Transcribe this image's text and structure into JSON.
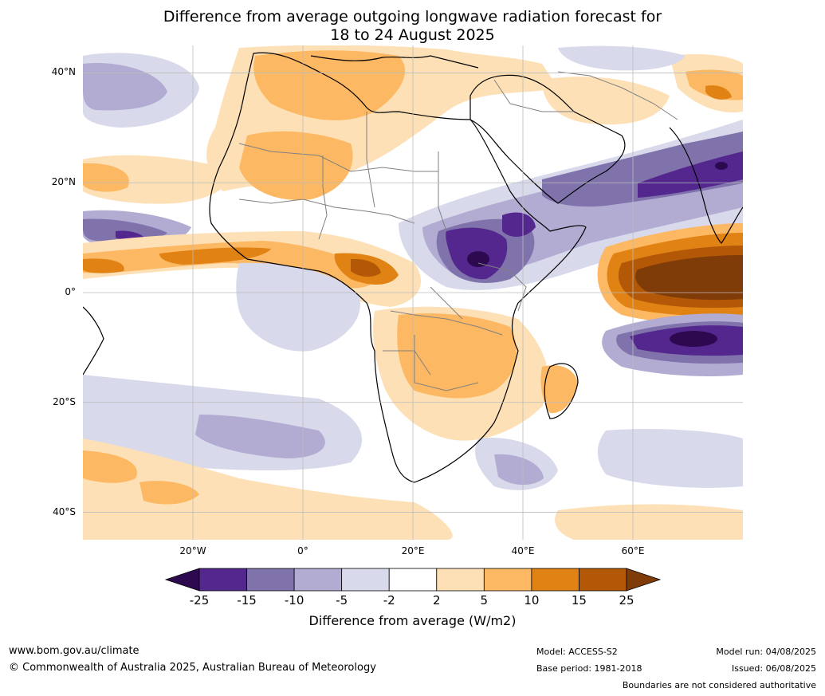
{
  "title": {
    "line1": "Difference from average outgoing longwave radiation forecast for",
    "line2": "18 to 24 August 2025"
  },
  "map": {
    "lat_labels": [
      "40°N",
      "20°N",
      "0°",
      "20°S",
      "40°S"
    ],
    "lon_labels": [
      "20°W",
      "0°",
      "20°E",
      "40°E",
      "60°E"
    ],
    "latitudes": [
      40,
      20,
      0,
      -20,
      -40
    ],
    "longitudes": [
      -20,
      0,
      20,
      40,
      60
    ],
    "extent": {
      "lon_min": -40,
      "lon_max": 80,
      "lat_min": -45,
      "lat_max": 45
    },
    "ocean_color": "#ffffff",
    "coastline_color": "#000000",
    "border_color": "#808080"
  },
  "colorbar": {
    "ticks": [
      "-25",
      "-15",
      "-10",
      "-5",
      "-2",
      "2",
      "5",
      "10",
      "15",
      "25"
    ],
    "colors": [
      "#2d0a4f",
      "#54278f",
      "#8073ac",
      "#b2abd2",
      "#d8daeb",
      "#ffffff",
      "#fee0b6",
      "#fdb863",
      "#e08214",
      "#b35806",
      "#7f3b08"
    ],
    "label": "Difference from average (W/m2)"
  },
  "footer": {
    "website": "www.bom.gov.au/climate",
    "copyright": "© Commonwealth of Australia 2025, Australian Bureau of Meteorology",
    "model": "Model: ACCESS-S2",
    "base_period": "Base period: 1981-2018",
    "model_run": "Model run: 04/08/2025",
    "issued": "Issued: 06/08/2025",
    "disclaimer": "Boundaries are not considered authoritative"
  }
}
